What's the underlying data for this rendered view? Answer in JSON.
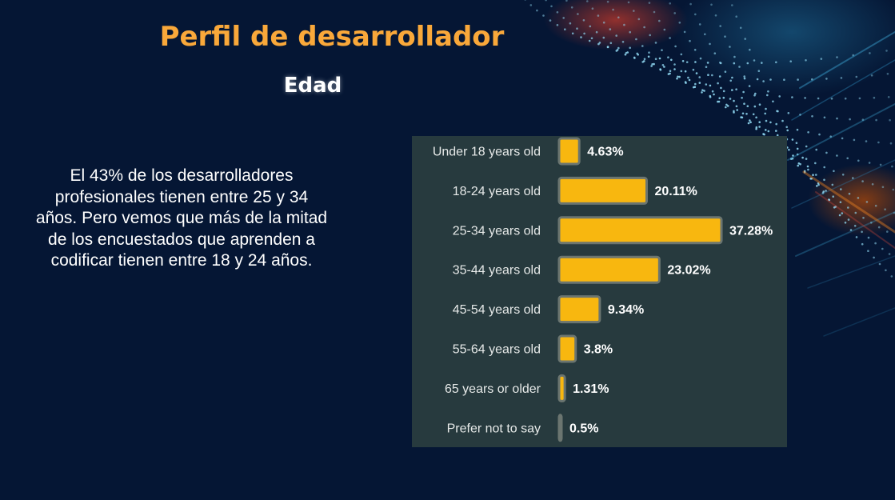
{
  "slide": {
    "title": "Perfil de desarrollador",
    "subtitle": "Edad",
    "description": "El 43% de los desarrolladores profesionales tienen entre 25 y 34 años. Pero vemos que más de la mitad de los encuestados que aprenden a codificar tienen entre 18 y 24 años."
  },
  "colors": {
    "background": "#051634",
    "title": "#F9A83A",
    "chart_background": "#273A3E",
    "bar_fill": "#F8B70F",
    "bar_border": "#6B7570",
    "label_text": "#E6E9E8",
    "value_text": "#FFFFFF"
  },
  "chart_data": {
    "type": "bar",
    "orientation": "horizontal",
    "categories": [
      "Under 18 years old",
      "18-24 years old",
      "25-34 years old",
      "35-44 years old",
      "45-54 years old",
      "55-64 years old",
      "65 years or older",
      "Prefer not to say"
    ],
    "values": [
      4.63,
      20.11,
      37.28,
      23.02,
      9.34,
      3.8,
      1.31,
      0.5
    ],
    "value_labels": [
      "4.63%",
      "20.11%",
      "37.28%",
      "23.02%",
      "9.34%",
      "3.8%",
      "1.31%",
      "0.5%"
    ],
    "title": "",
    "xlabel": "",
    "ylabel": "",
    "xlim": [
      0,
      37.28
    ],
    "grid": false,
    "legend": "none"
  }
}
